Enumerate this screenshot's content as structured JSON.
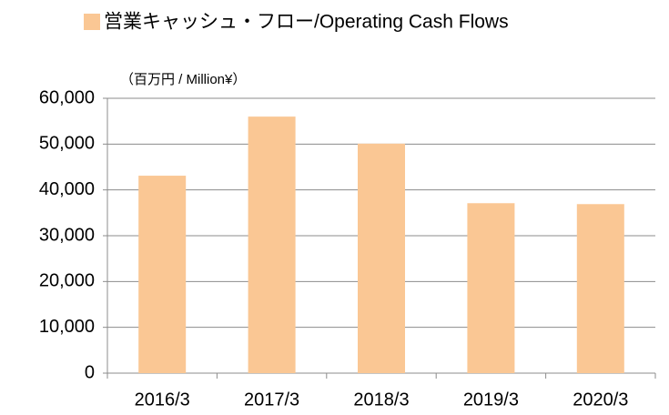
{
  "chart_data": {
    "type": "bar",
    "unit_label": "（百万円 / Million¥）",
    "categories": [
      "2016/3",
      "2017/3",
      "2018/3",
      "2019/3",
      "2020/3"
    ],
    "series": [
      {
        "name": "営業キャッシュ・フロー/Operating Cash Flows",
        "color": "#fac794",
        "values": [
          43100,
          56000,
          50100,
          37100,
          36900
        ]
      }
    ],
    "ylim": [
      0,
      60000
    ],
    "yticks": [
      0,
      {
        "value": 10000,
        "label": "10,000"
      },
      {
        "value": 20000,
        "label": "20,000"
      },
      {
        "value": 30000,
        "label": "30,000"
      },
      {
        "value": 40000,
        "label": "40,000"
      },
      {
        "value": 50000,
        "label": "50,000"
      },
      {
        "value": 60000,
        "label": "60,000"
      }
    ],
    "grid": true,
    "legend": "top"
  }
}
